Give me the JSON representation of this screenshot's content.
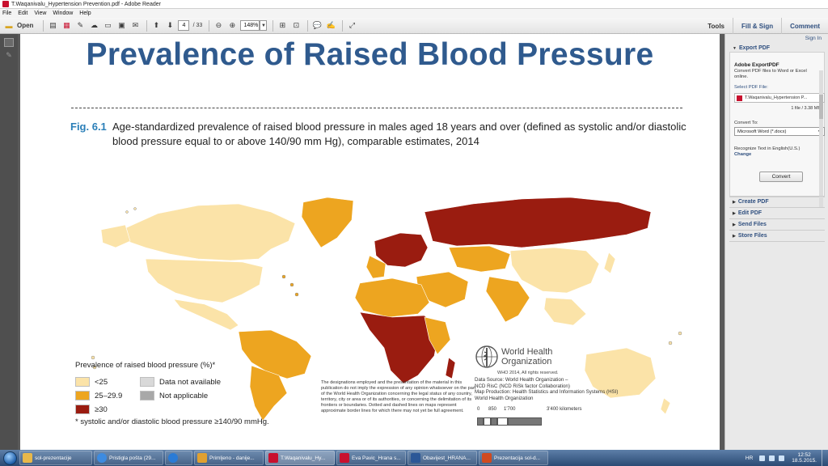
{
  "window": {
    "title": "T.Waqanivalu_Hypertension Prevention.pdf - Adobe Reader"
  },
  "menu": [
    "File",
    "Edit",
    "View",
    "Window",
    "Help"
  ],
  "toolbar": {
    "open_label": "Open",
    "page_current": "4",
    "page_total": "/ 33",
    "zoom": "148%",
    "right_tabs": [
      "Tools",
      "Fill & Sign",
      "Comment"
    ]
  },
  "document": {
    "title": "Prevalence of Raised Blood Pressure",
    "fig_label": "Fig. 6.1",
    "fig_caption": "Age-standardized prevalence of raised blood pressure in males aged 18 years and over (defined as systolic and/or diastolic blood pressure equal to or above 140/90 mm Hg), comparable estimates, 2014",
    "legend": {
      "title": "Prevalence of raised blood pressure (%)*",
      "items": [
        {
          "label": "<25",
          "color": "#fbe3a8"
        },
        {
          "label": "25–29.9",
          "color": "#eda520"
        },
        {
          "label": "≥30",
          "color": "#9a1c10"
        },
        {
          "label": "Data not available",
          "color": "#d9d9d9"
        },
        {
          "label": "Not applicable",
          "color": "#a8a8a8"
        }
      ]
    },
    "footnote": "* systolic and/or diastolic blood pressure ≥140/90 mmHg.",
    "disclaimer": "The designations employed and the presentation of the material in this publication do not imply the expression of any opinion whatsoever on the part of the World Health Organization concerning the legal status of any country, territory, city or area or of its authorities, or concerning the delimitation of its frontiers or boundaries. Dotted and dashed lines on maps represent approximate border lines for which there may not yet be full agreement.",
    "who_name_line1": "World Health",
    "who_name_line2": "Organization",
    "who_copyright": "WHO 2014, All rights reserved.",
    "data_source": [
      "Data Source: World Health Organization –",
      "NCD RisC (NCD RiSk factor Collaboration)",
      "Map Production: Health Statistics and Information Systems (HSI)",
      "World Health Organization"
    ],
    "scale_labels": [
      "0",
      "850",
      "1'700",
      "3'400 kilometers"
    ]
  },
  "right_panel": {
    "sign_in": "Sign In",
    "export_header": "Export PDF",
    "export_title": "Adobe ExportPDF",
    "export_desc": "Convert PDF files to Word or Excel online.",
    "select_label": "Select PDF File:",
    "file_name": "T.Waqanivalu_Hypertension P...",
    "file_size": "1 file / 3.38 MB",
    "convert_to_label": "Convert To:",
    "convert_to_value": "Microsoft Word (*.docx)",
    "recognize_text": "Recognize Text in English(U.S.)",
    "change_label": "Change",
    "convert_button": "Convert",
    "sections": [
      "Create PDF",
      "Edit PDF",
      "Send Files",
      "Store Files"
    ]
  },
  "taskbar": {
    "items": [
      {
        "label": "sol-prezentacije",
        "color": "#e8b84a"
      },
      {
        "label": "Pristigla pošta (29...",
        "color": "#3d8be0"
      },
      {
        "label": "",
        "color": "#2a7bd6"
      },
      {
        "label": "Primljeno - danije...",
        "color": "#e0a030"
      },
      {
        "label": "T.Waqanivalu_Hy...",
        "color": "#c8102e"
      },
      {
        "label": "Eva Pavic_Hrana s...",
        "color": "#c8102e"
      },
      {
        "label": "Obavijest_HRANA...",
        "color": "#2b5797"
      },
      {
        "label": "Prezentacija sol-d...",
        "color": "#d04a1f"
      }
    ],
    "lang": "HR",
    "time": "12:52",
    "date": "18.5.2015."
  }
}
